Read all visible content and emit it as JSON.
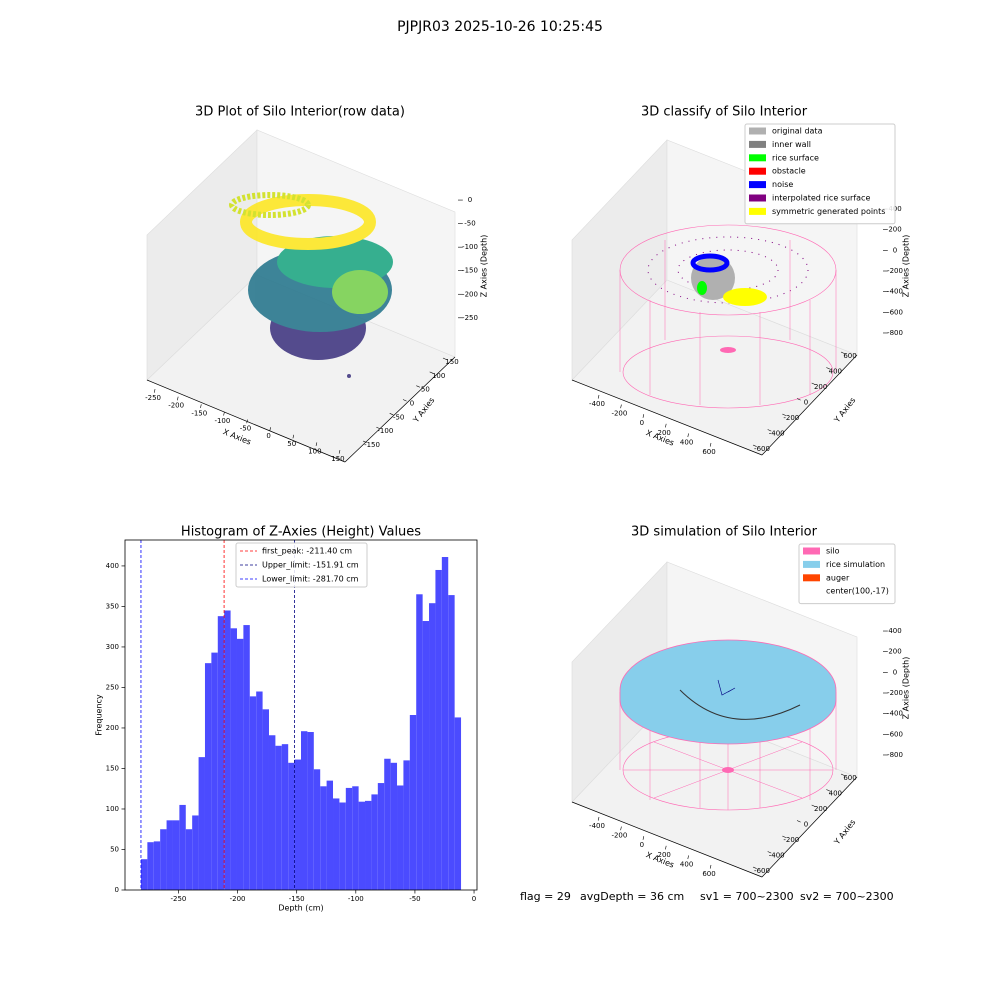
{
  "title": "PJPJR03 2025-10-26 10:25:45",
  "footer": [
    "flag = 29",
    "avgDepth = 36 cm",
    "sv1 = 700~2300",
    "sv2 = 700~2300"
  ],
  "chart_data": [
    {
      "type": "scatter3d",
      "title": "3D Plot of Silo Interior(row data)",
      "xlabel": "X Axies",
      "ylabel": "Y Axies",
      "zlabel": "Z Axies (Depth)",
      "xlim": [
        -270,
        165
      ],
      "ylim": [
        -170,
        170
      ],
      "zlim": [
        -295,
        15
      ],
      "xticks": [
        -250,
        -200,
        -150,
        -100,
        -50,
        0,
        50,
        100,
        150
      ],
      "yticks": [
        -150,
        -100,
        -50,
        0,
        50,
        100,
        150
      ],
      "zticks": [
        0,
        -50,
        -100,
        -150,
        -200,
        -250
      ]
    },
    {
      "type": "scatter3d",
      "title": "3D classify of Silo Interior",
      "xlabel": "X Axies",
      "ylabel": "Y Axies",
      "zlabel": "Z Axies (Depth)",
      "xlim": [
        -500,
        750
      ],
      "ylim": [
        -750,
        750
      ],
      "zlim": [
        -900,
        500
      ],
      "xticks": [
        -400,
        -200,
        0,
        200,
        400,
        600
      ],
      "yticks": [
        -600,
        -400,
        -200,
        0,
        200,
        400,
        600
      ],
      "zticks": [
        400,
        200,
        0,
        -200,
        -400,
        -600,
        -800
      ],
      "legend": "upper right",
      "legend_entries": [
        {
          "name": "original data",
          "color": "#b0b0b0"
        },
        {
          "name": "inner wall",
          "color": "#808080"
        },
        {
          "name": "rice surface",
          "color": "#00ff00"
        },
        {
          "name": "obstacle",
          "color": "#ff0000"
        },
        {
          "name": "noise",
          "color": "#0000ff"
        },
        {
          "name": "interpolated rice surface",
          "color": "#800080"
        },
        {
          "name": "symmetric generated points",
          "color": "#ffff00"
        }
      ]
    },
    {
      "type": "histogram",
      "title": "Histogram of Z-Axies (Height) Values",
      "xlabel": "Depth (cm)",
      "ylabel": "Frequency",
      "color": "#4b4bff",
      "bins": [
        -281.7,
        -276.29,
        -270.87,
        -265.46,
        -260.04,
        -254.63,
        -249.22,
        -243.8,
        -238.39,
        -232.97,
        -227.56,
        -222.15,
        -216.73,
        -211.32,
        -205.9,
        -200.49,
        -195.08,
        -189.66,
        -184.25,
        -178.83,
        -173.42,
        -168.01,
        -162.59,
        -157.18,
        -151.76,
        -146.35,
        -140.94,
        -135.52,
        -130.11,
        -124.69,
        -119.28,
        -113.87,
        -108.45,
        -103.04,
        -97.62,
        -92.21,
        -86.8,
        -81.38,
        -75.97,
        -70.55,
        -65.14,
        -59.73,
        -54.31,
        -48.9,
        -43.48,
        -38.07,
        -32.66,
        -27.24,
        -21.83,
        -16.41,
        -11.0
      ],
      "values": [
        38,
        59,
        60,
        75,
        86,
        86,
        105,
        75,
        92,
        164,
        280,
        293,
        338,
        345,
        323,
        310,
        327,
        239,
        245,
        223,
        191,
        178,
        180,
        157,
        161,
        196,
        195,
        149,
        128,
        135,
        113,
        108,
        126,
        128,
        109,
        110,
        118,
        132,
        162,
        157,
        129,
        160,
        216,
        365,
        332,
        354,
        395,
        411,
        364,
        213
      ],
      "xlim": [
        -295.2,
        2.5
      ],
      "ylim": [
        0,
        432
      ],
      "xticks": [
        -250,
        -200,
        -150,
        -100,
        -50,
        0
      ],
      "yticks": [
        0,
        50,
        100,
        150,
        200,
        250,
        300,
        350,
        400
      ],
      "legend": "upper center",
      "lines": [
        {
          "name": "first_peak: -211.40 cm",
          "value": -211.4,
          "color": "#ff0000"
        },
        {
          "name": "Upper_limit: -151.91 cm",
          "value": -151.91,
          "color": "#000080"
        },
        {
          "name": "Lower_limit: -281.70 cm",
          "value": -281.7,
          "color": "#0000ff"
        }
      ]
    },
    {
      "type": "surface3d",
      "title": "3D simulation of Silo Interior",
      "xlabel": "X Axies",
      "ylabel": "Y Axies",
      "zlabel": "Z Axies (Depth)",
      "xlim": [
        -500,
        750
      ],
      "ylim": [
        -750,
        750
      ],
      "zlim": [
        -900,
        500
      ],
      "xticks": [
        -400,
        -200,
        0,
        200,
        400,
        600
      ],
      "yticks": [
        -600,
        -400,
        -200,
        0,
        200,
        400,
        600
      ],
      "zticks": [
        400,
        200,
        0,
        -200,
        -400,
        -600,
        -800
      ],
      "legend": "upper right",
      "legend_entries": [
        {
          "name": "silo",
          "color": "#ff69b4"
        },
        {
          "name": "rice simulation",
          "color": "#87ceeb"
        },
        {
          "name": "auger",
          "color": "#ff4500"
        },
        {
          "name": "center(100,-17)"
        }
      ]
    }
  ]
}
